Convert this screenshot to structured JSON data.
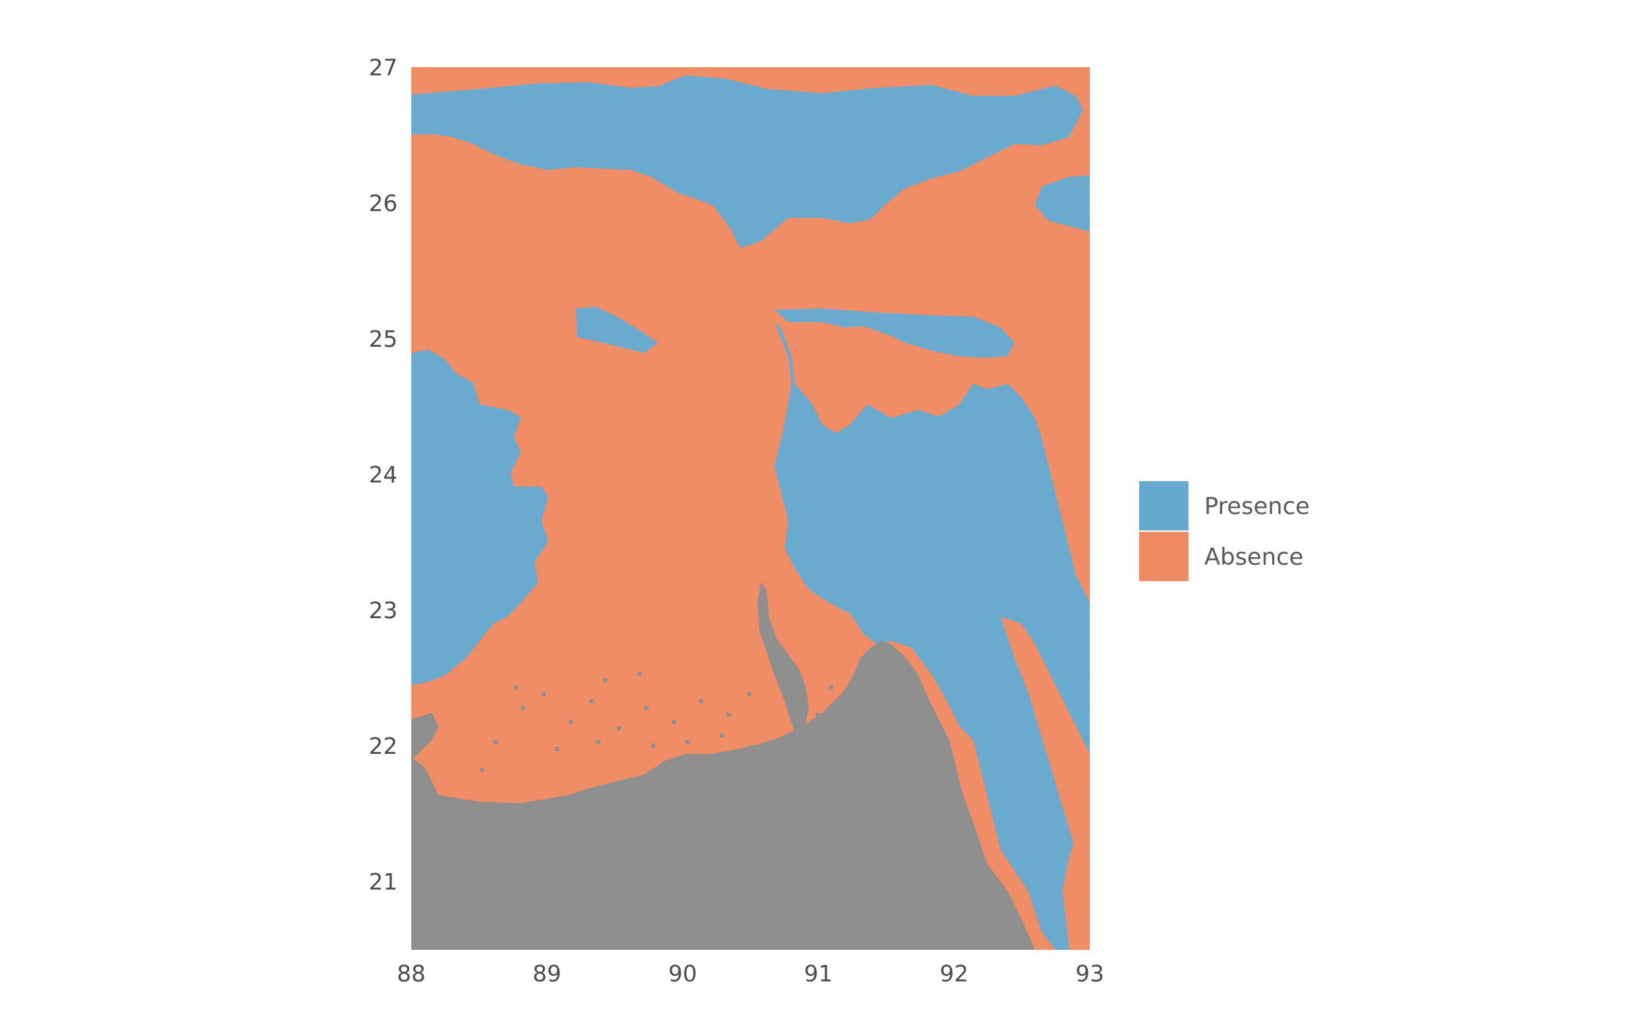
{
  "map": {
    "x_ticks": [
      "88",
      "89",
      "90",
      "91",
      "92",
      "93"
    ],
    "y_ticks": [
      "27",
      "26",
      "25",
      "24",
      "23",
      "22",
      "21"
    ],
    "lon_range": [
      88,
      93
    ],
    "lat_range": [
      20.5,
      27
    ],
    "categories": [
      {
        "key": "presence",
        "label": "Presence",
        "color": "#67a8cf"
      },
      {
        "key": "absence",
        "label": "Absence",
        "color": "#ef8a62"
      },
      {
        "key": "no_data",
        "label": "",
        "color": "#8c8c8c"
      }
    ],
    "legend": {
      "position": "right",
      "items": [
        {
          "label": "Presence",
          "color": "#67a8cf"
        },
        {
          "label": "Absence",
          "color": "#ef8a62"
        }
      ]
    }
  }
}
